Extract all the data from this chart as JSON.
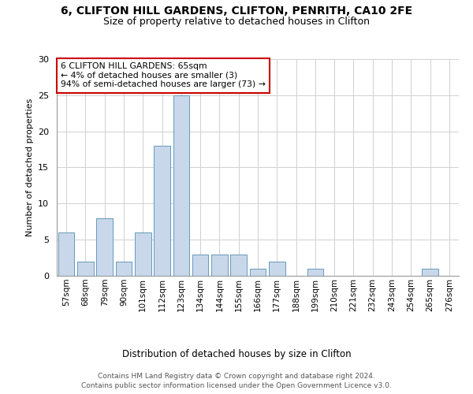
{
  "title1": "6, CLIFTON HILL GARDENS, CLIFTON, PENRITH, CA10 2FE",
  "title2": "Size of property relative to detached houses in Clifton",
  "xlabel": "Distribution of detached houses by size in Clifton",
  "ylabel": "Number of detached properties",
  "categories": [
    "57sqm",
    "68sqm",
    "79sqm",
    "90sqm",
    "101sqm",
    "112sqm",
    "123sqm",
    "134sqm",
    "144sqm",
    "155sqm",
    "166sqm",
    "177sqm",
    "188sqm",
    "199sqm",
    "210sqm",
    "221sqm",
    "232sqm",
    "243sqm",
    "254sqm",
    "265sqm",
    "276sqm"
  ],
  "values": [
    6,
    2,
    8,
    2,
    6,
    18,
    25,
    3,
    3,
    3,
    1,
    2,
    0,
    1,
    0,
    0,
    0,
    0,
    0,
    1,
    0
  ],
  "bar_color": "#c8d8ea",
  "bar_edge_color": "#6699bb",
  "annotation_box_text": "6 CLIFTON HILL GARDENS: 65sqm\n← 4% of detached houses are smaller (3)\n94% of semi-detached houses are larger (73) →",
  "annotation_box_color": "#ffffff",
  "annotation_box_edge_color": "#cc0000",
  "footer1": "Contains HM Land Registry data © Crown copyright and database right 2024.",
  "footer2": "Contains public sector information licensed under the Open Government Licence v3.0.",
  "ylim": [
    0,
    30
  ],
  "yticks": [
    0,
    5,
    10,
    15,
    20,
    25,
    30
  ],
  "bg_color": "#ffffff",
  "grid_color": "#d0d0d0"
}
